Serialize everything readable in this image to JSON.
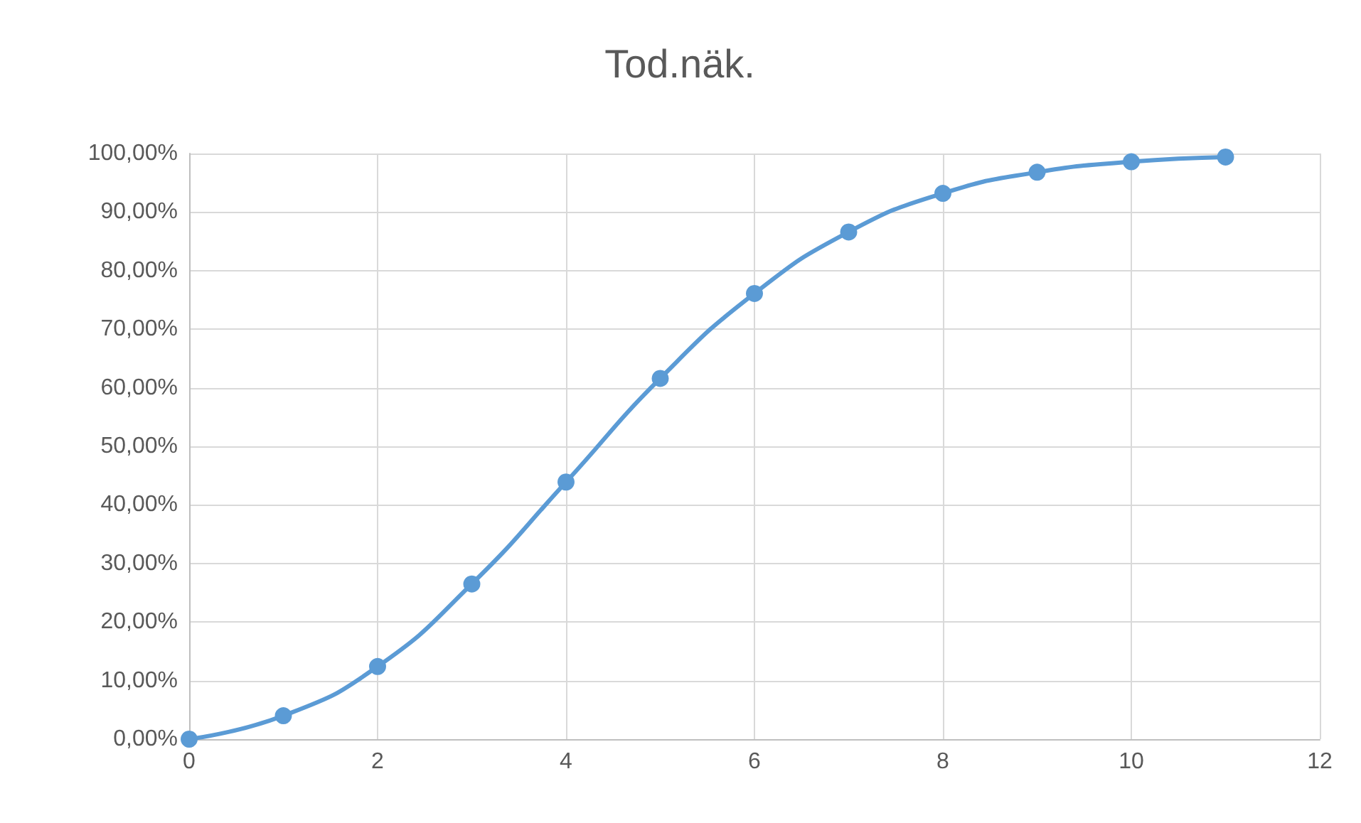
{
  "chart_data": {
    "type": "line",
    "title": "Tod.näk.",
    "x": [
      0,
      1,
      2,
      3,
      4,
      5,
      6,
      7,
      8,
      9,
      10,
      11
    ],
    "series": [
      {
        "color": "#5b9bd5",
        "values": [
          0,
          4.0,
          12.4,
          26.5,
          43.9,
          61.6,
          76.1,
          86.6,
          93.2,
          96.8,
          98.6,
          99.4
        ]
      }
    ],
    "xlim": [
      0,
      12
    ],
    "xticks": [
      0,
      2,
      4,
      6,
      8,
      10,
      12
    ],
    "ylim": [
      0,
      100
    ],
    "yticks": [
      {
        "value": 0,
        "label": "0,00%"
      },
      {
        "value": 10,
        "label": "10,00%"
      },
      {
        "value": 20,
        "label": "20,00%"
      },
      {
        "value": 30,
        "label": "30,00%"
      },
      {
        "value": 40,
        "label": "40,00%"
      },
      {
        "value": 50,
        "label": "50,00%"
      },
      {
        "value": 60,
        "label": "60,00%"
      },
      {
        "value": 70,
        "label": "70,00%"
      },
      {
        "value": 80,
        "label": "80,00%"
      },
      {
        "value": 90,
        "label": "90,00%"
      },
      {
        "value": 100,
        "label": "100,00%"
      }
    ],
    "grid": true,
    "marker": "circle",
    "line_style": "solid"
  }
}
